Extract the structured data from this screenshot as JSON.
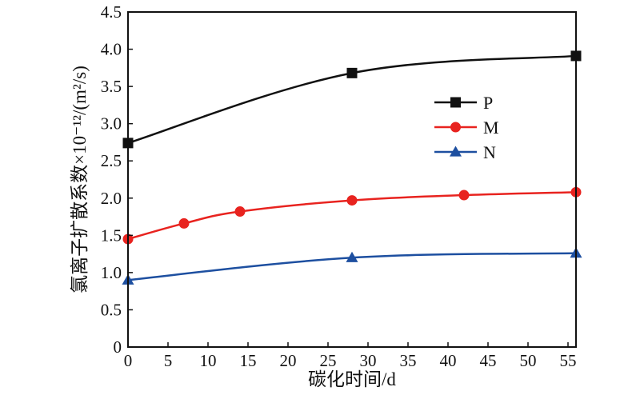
{
  "chart_data": {
    "type": "line",
    "title": "",
    "xlabel": "碳化时间/d",
    "ylabel": "氯离子扩散系数×10⁻¹²/(m²/s)",
    "xlim": [
      0,
      56
    ],
    "ylim": [
      0,
      4.5
    ],
    "xticks": [
      "0",
      "5",
      "10",
      "15",
      "20",
      "25",
      "30",
      "35",
      "40",
      "45",
      "50",
      "55"
    ],
    "yticks": [
      "0",
      "0.5",
      "1.0",
      "1.5",
      "2.0",
      "2.5",
      "3.0",
      "3.5",
      "4.0",
      "4.5"
    ],
    "grid": false,
    "legend_position": "right, middle",
    "series": [
      {
        "name": "P",
        "color": "#111111",
        "marker": "square",
        "x": [
          0,
          28,
          56
        ],
        "y": [
          2.74,
          3.68,
          3.91
        ]
      },
      {
        "name": "M",
        "color": "#e8231f",
        "marker": "circle",
        "x": [
          0,
          7,
          14,
          28,
          42,
          56
        ],
        "y": [
          1.45,
          1.66,
          1.82,
          1.97,
          2.04,
          2.08
        ]
      },
      {
        "name": "N",
        "color": "#1d4fa0",
        "marker": "triangle",
        "x": [
          0,
          28,
          56
        ],
        "y": [
          0.9,
          1.2,
          1.26
        ]
      }
    ]
  }
}
